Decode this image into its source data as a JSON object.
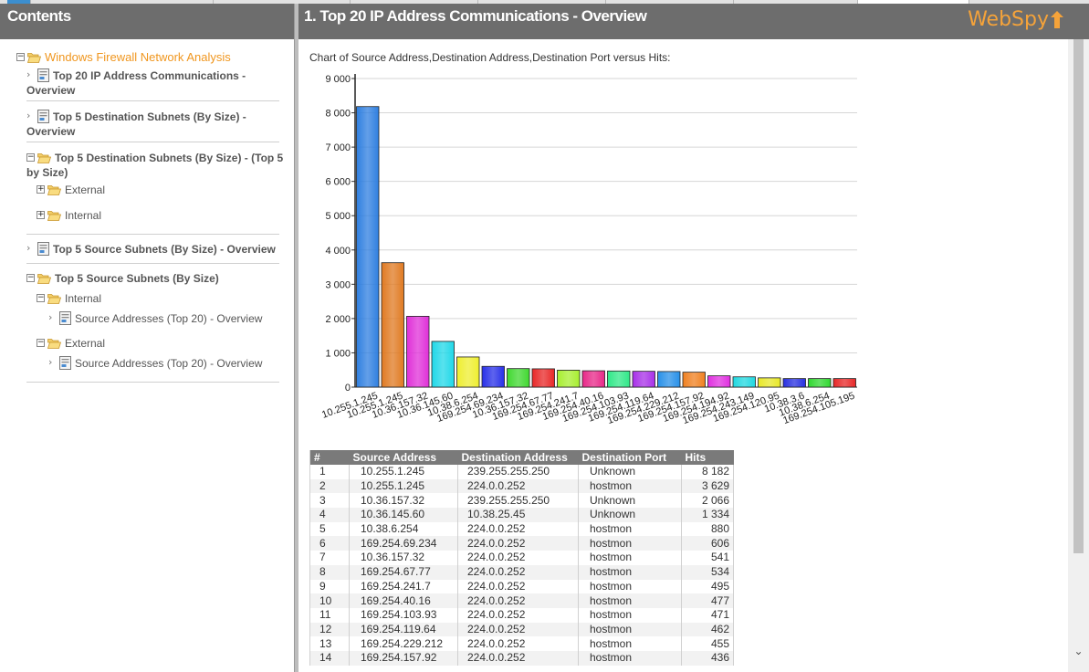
{
  "left_pane": {
    "title": "Contents",
    "root": "Windows Firewall Network Analysis",
    "items": [
      {
        "line1": "Top 20 IP Address Communications -",
        "line2": "Overview"
      },
      {
        "line1": "Top 5 Destination Subnets (By Size) -",
        "line2": "Overview"
      },
      {
        "line1": "Top 5 Destination Subnets (By Size) - (Top 5",
        "line2": "by Size)"
      },
      {
        "label": "External"
      },
      {
        "label": "Internal"
      },
      {
        "label": "Top 5 Source Subnets (By Size) - Overview"
      },
      {
        "label": "Top 5 Source Subnets (By Size)"
      },
      {
        "label": "Internal"
      },
      {
        "label": "Source Addresses (Top 20) - Overview"
      },
      {
        "label": "External"
      },
      {
        "label": "Source Addresses (Top 20) - Overview"
      }
    ]
  },
  "right_pane": {
    "title": "1. Top 20 IP Address Communications - Overview",
    "logo": "WebSpy",
    "chart_caption": "Chart of Source Address,Destination Address,Destination Port versus Hits:"
  },
  "chart_data": {
    "type": "bar",
    "categories": [
      "10.255.1.245",
      "10.255.1.245",
      "10.36.157.32",
      "10.36.145.60",
      "10.38.6.254",
      "169.254.69.234",
      "10.36.157.32",
      "169.254.67.77",
      "169.254.241.7",
      "169.254.40.16",
      "169.254.103.93",
      "169.254.119.64",
      "169.254.229.212",
      "169.254.157.92",
      "169.254.194.92",
      "169.254.243.149",
      "169.254.120.95",
      "10.38.3.6",
      "10.38.6.254",
      "169.254.105.195"
    ],
    "values": [
      8182,
      3629,
      2066,
      1334,
      880,
      606,
      541,
      534,
      495,
      477,
      471,
      462,
      455,
      436,
      330,
      300,
      270,
      250,
      250,
      250
    ],
    "colors": [
      "#2f7fe0",
      "#e07a22",
      "#e030d8",
      "#20d8e8",
      "#eeee30",
      "#2830e8",
      "#40d830",
      "#e82828",
      "#a8ee30",
      "#e82888",
      "#30e888",
      "#a830e8",
      "#2890e8",
      "#f08020",
      "#e030e0",
      "#20d8e0",
      "#e8e828",
      "#2830e0",
      "#30d830",
      "#e82828"
    ],
    "yticks": [
      "0",
      "1 000",
      "2 000",
      "3 000",
      "4 000",
      "5 000",
      "6 000",
      "7 000",
      "8 000",
      "9 000"
    ],
    "ylim": [
      0,
      9000
    ],
    "grid": true
  },
  "table": {
    "headers": [
      "#",
      "Source Address",
      "Destination Address",
      "Destination Port",
      "Hits"
    ],
    "rows": [
      [
        "1",
        "10.255.1.245",
        "239.255.255.250",
        "Unknown",
        "8 182"
      ],
      [
        "2",
        "10.255.1.245",
        "224.0.0.252",
        "hostmon",
        "3 629"
      ],
      [
        "3",
        "10.36.157.32",
        "239.255.255.250",
        "Unknown",
        "2 066"
      ],
      [
        "4",
        "10.36.145.60",
        "10.38.25.45",
        "Unknown",
        "1 334"
      ],
      [
        "5",
        "10.38.6.254",
        "224.0.0.252",
        "hostmon",
        "880"
      ],
      [
        "6",
        "169.254.69.234",
        "224.0.0.252",
        "hostmon",
        "606"
      ],
      [
        "7",
        "10.36.157.32",
        "224.0.0.252",
        "hostmon",
        "541"
      ],
      [
        "8",
        "169.254.67.77",
        "224.0.0.252",
        "hostmon",
        "534"
      ],
      [
        "9",
        "169.254.241.7",
        "224.0.0.252",
        "hostmon",
        "495"
      ],
      [
        "10",
        "169.254.40.16",
        "224.0.0.252",
        "hostmon",
        "477"
      ],
      [
        "11",
        "169.254.103.93",
        "224.0.0.252",
        "hostmon",
        "471"
      ],
      [
        "12",
        "169.254.119.64",
        "224.0.0.252",
        "hostmon",
        "462"
      ],
      [
        "13",
        "169.254.229.212",
        "224.0.0.252",
        "hostmon",
        "455"
      ],
      [
        "14",
        "169.254.157.92",
        "224.0.0.252",
        "hostmon",
        "436"
      ]
    ]
  }
}
